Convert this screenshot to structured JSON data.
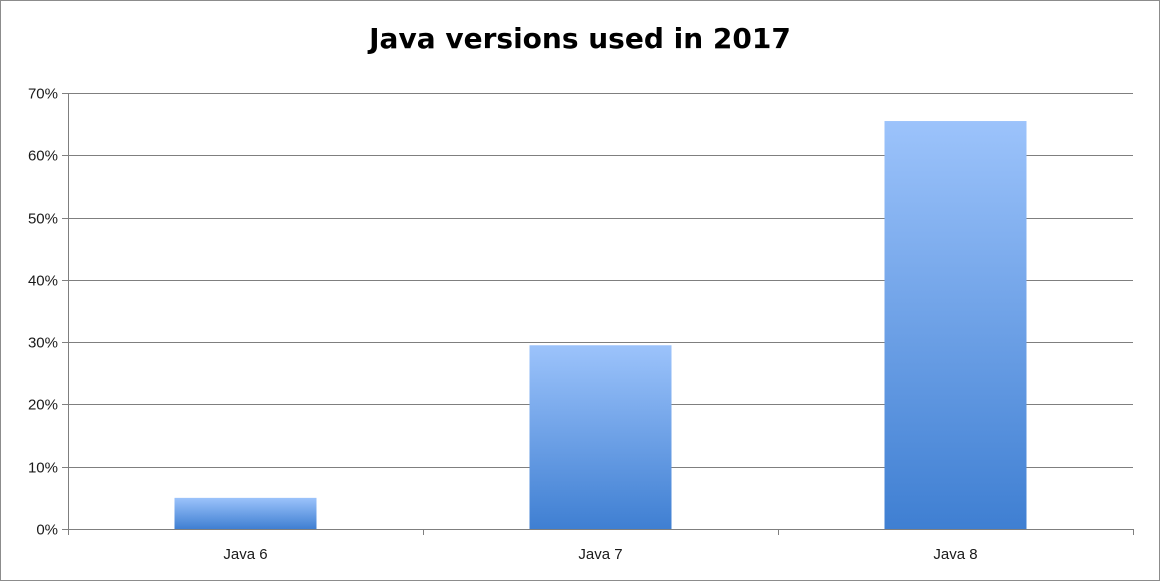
{
  "chart_data": {
    "type": "bar",
    "title": "Java versions used in 2017",
    "xlabel": "",
    "ylabel": "",
    "categories": [
      "Java 6",
      "Java 7",
      "Java 8"
    ],
    "values": [
      5,
      29.5,
      65.5
    ],
    "ylim": [
      0,
      70
    ],
    "yticks": [
      "0%",
      "10%",
      "20%",
      "30%",
      "40%",
      "50%",
      "60%",
      "70%"
    ],
    "ytick_values": [
      0,
      10,
      20,
      30,
      40,
      50,
      60,
      70
    ],
    "grid": true,
    "legend": "none",
    "colors": {
      "bar_top": "#9cc3fb",
      "bar_bottom": "#3f7fd2",
      "grid": "#7f7f7f",
      "axis": "#7f7f7f"
    }
  }
}
